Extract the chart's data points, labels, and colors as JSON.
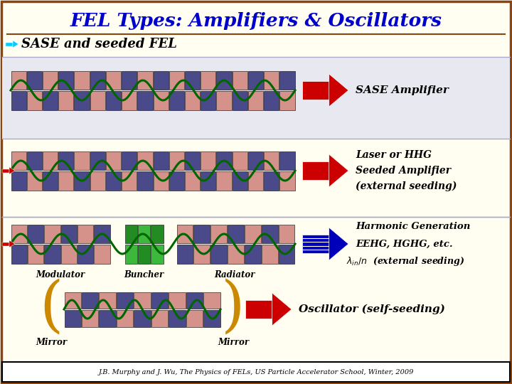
{
  "title": "FEL Types: Amplifiers & Oscillators",
  "title_color": "#0000CC",
  "subtitle": "SASE and seeded FEL",
  "bg_main": "#FFFEF0",
  "bg_row2": "#E8E8F0",
  "border_color": "#8B4513",
  "footer": "J.B. Murphy and J. Wu, The Physics of FELs, US Particle Accelerator School, Winter, 2009",
  "magnet_dark": "#4A4A8A",
  "magnet_pink": "#D4928A",
  "magnet_green": "#3CB83C",
  "magnet_green2": "#228B22",
  "arrow_red": "#CC0000",
  "arrow_blue": "#0000BB",
  "wave_color": "#006600",
  "mirror_color": "#CC8800",
  "label_row1": "SASE Amplifier",
  "label_row2_1": "Laser or HHG",
  "label_row2_2": "Seeded Amplifier",
  "label_row2_3": "(external seeding)",
  "label_row3_1": "Harmonic Generation",
  "label_row3_2": "EEHG, HGHG, etc.",
  "label_row4": "Oscillator (self-seeding)",
  "label_mod": "Modulator",
  "label_bun": "Buncher",
  "label_rad": "Radiator",
  "label_mirror1": "Mirror",
  "label_mirror2": "Mirror"
}
